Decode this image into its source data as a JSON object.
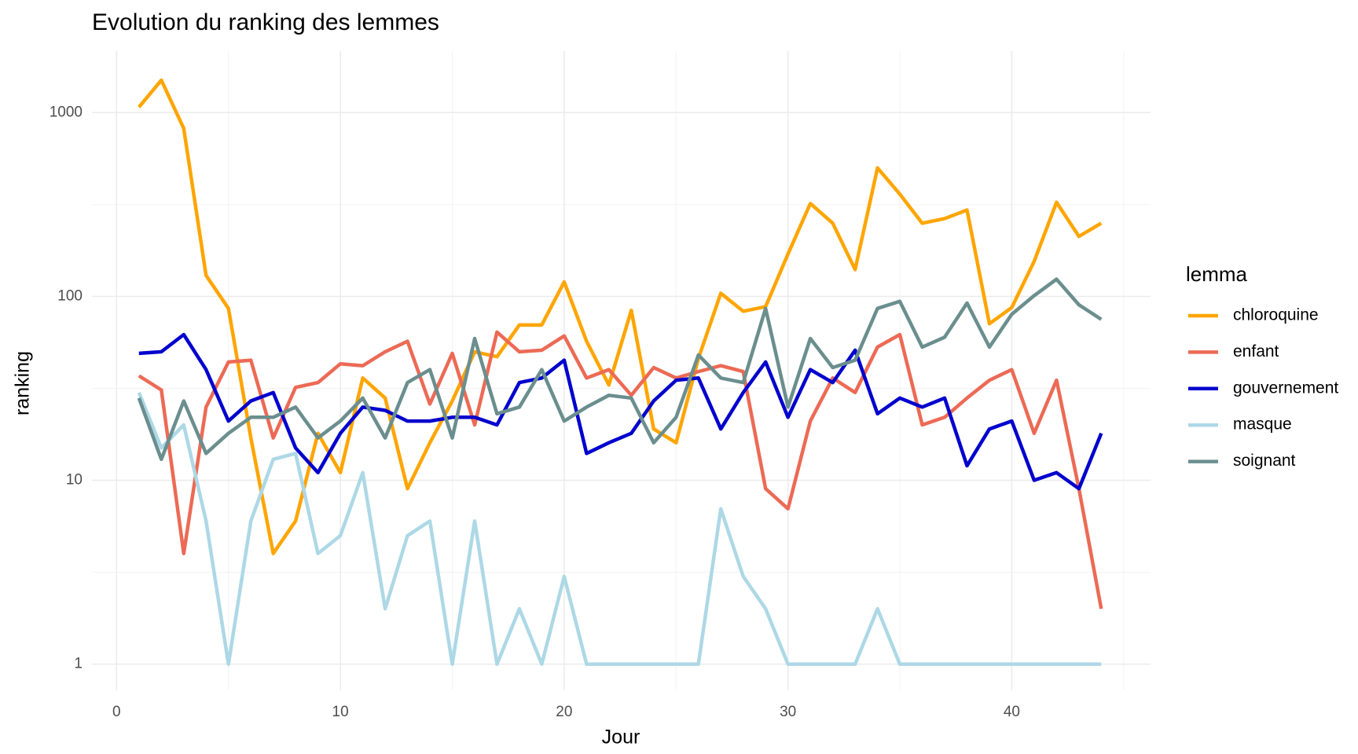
{
  "chart_data": {
    "type": "line",
    "title": "Evolution du ranking des lemmes",
    "x_label": "Jour",
    "y_label": "ranking",
    "legend_title": "lemma",
    "log_y": true,
    "grid": true,
    "legend_position": "right",
    "x": [
      1,
      2,
      3,
      4,
      5,
      6,
      7,
      8,
      9,
      10,
      11,
      12,
      13,
      14,
      15,
      16,
      17,
      18,
      19,
      20,
      21,
      22,
      23,
      24,
      25,
      26,
      27,
      28,
      29,
      30,
      31,
      32,
      33,
      34,
      35,
      36,
      37,
      38,
      39,
      40,
      41,
      42,
      43,
      44
    ],
    "series": [
      {
        "name": "chloroquine",
        "color": "#ffa500",
        "values": [
          1070,
          1500,
          820,
          130,
          86,
          17,
          4,
          6,
          18,
          11,
          36,
          28,
          9,
          16,
          27,
          50,
          47,
          70,
          70,
          120,
          57,
          33,
          84,
          19,
          16,
          46,
          104,
          83,
          88,
          170,
          320,
          250,
          140,
          500,
          360,
          250,
          265,
          295,
          71,
          87,
          155,
          325,
          212,
          250
        ]
      },
      {
        "name": "enfant",
        "color": "#ec6a55",
        "values": [
          37,
          31,
          4,
          25,
          44,
          45,
          17,
          32,
          34,
          43,
          42,
          50,
          57,
          26,
          49,
          20,
          64,
          50,
          51,
          61,
          36,
          40,
          29,
          41,
          36,
          39,
          42,
          39,
          9,
          7,
          21,
          36,
          30,
          53,
          62,
          20,
          22,
          28,
          35,
          40,
          18,
          35,
          9,
          2
        ]
      },
      {
        "name": "gouvernement",
        "color": "#0000cd",
        "values": [
          49,
          50,
          62,
          40,
          21,
          27,
          30,
          15,
          11,
          18,
          25,
          24,
          21,
          21,
          22,
          22,
          20,
          34,
          36,
          45,
          14,
          16,
          18,
          27,
          35,
          36,
          19,
          30,
          44,
          22,
          40,
          34,
          51,
          23,
          28,
          25,
          28,
          12,
          19,
          21,
          10,
          11,
          9,
          18
        ]
      },
      {
        "name": "masque",
        "color": "#add8e6",
        "values": [
          30,
          15,
          20,
          6,
          1,
          6,
          13,
          14,
          4,
          5,
          11,
          2,
          5,
          6,
          1,
          6,
          1,
          2,
          1,
          3,
          1,
          1,
          1,
          1,
          1,
          1,
          7,
          3,
          2,
          1,
          1,
          1,
          1,
          2,
          1,
          1,
          1,
          1,
          1,
          1,
          1,
          1,
          1,
          1
        ]
      },
      {
        "name": "soignant",
        "color": "#6b8e8e",
        "values": [
          28,
          13,
          27,
          14,
          18,
          22,
          22,
          25,
          17,
          21,
          28,
          17,
          34,
          40,
          17,
          59,
          23,
          25,
          40,
          21,
          25,
          29,
          28,
          16,
          22,
          48,
          36,
          34,
          86,
          25,
          59,
          41,
          45,
          86,
          94,
          53,
          60,
          92,
          53,
          80,
          101,
          124,
          90,
          75
        ]
      }
    ],
    "xlim": [
      -1.1,
      46.2
    ],
    "xticks": [
      0,
      10,
      20,
      30,
      40
    ],
    "ylim": [
      0.72,
      2160
    ],
    "yticks": [
      1,
      10,
      100,
      1000
    ]
  }
}
